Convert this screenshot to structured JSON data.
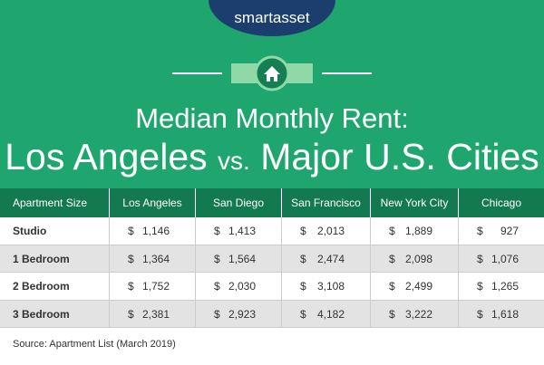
{
  "header": {
    "brand": "smartasset",
    "title_line1": "Median Monthly Rent:",
    "title_line2": {
      "city": "Los Angeles",
      "versus": "vs.",
      "rest": "Major U.S. Cities"
    }
  },
  "table": {
    "columns": [
      "Apartment Size",
      "Los Angeles",
      "San Diego",
      "San Francisco",
      "New York City",
      "Chicago"
    ],
    "rows": [
      {
        "label": "Studio",
        "cells": [
          [
            "$",
            "1,146"
          ],
          [
            "$",
            "1,413"
          ],
          [
            "$",
            "2,013"
          ],
          [
            "$",
            "1,889"
          ],
          [
            "$",
            "927"
          ]
        ]
      },
      {
        "label": "1 Bedroom",
        "cells": [
          [
            "$",
            "1,364"
          ],
          [
            "$",
            "1,564"
          ],
          [
            "$",
            "2,474"
          ],
          [
            "$",
            "2,098"
          ],
          [
            "$",
            "1,076"
          ]
        ]
      },
      {
        "label": "2 Bedroom",
        "cells": [
          [
            "$",
            "1,752"
          ],
          [
            "$",
            "2,030"
          ],
          [
            "$",
            "3,108"
          ],
          [
            "$",
            "2,499"
          ],
          [
            "$",
            "1,265"
          ]
        ]
      },
      {
        "label": "3 Bedroom",
        "cells": [
          [
            "$",
            "2,381"
          ],
          [
            "$",
            "2,923"
          ],
          [
            "$",
            "4,182"
          ],
          [
            "$",
            "3,222"
          ],
          [
            "$",
            "1,618"
          ]
        ]
      }
    ]
  },
  "source": "Source: Apartment List (March 2019)"
}
